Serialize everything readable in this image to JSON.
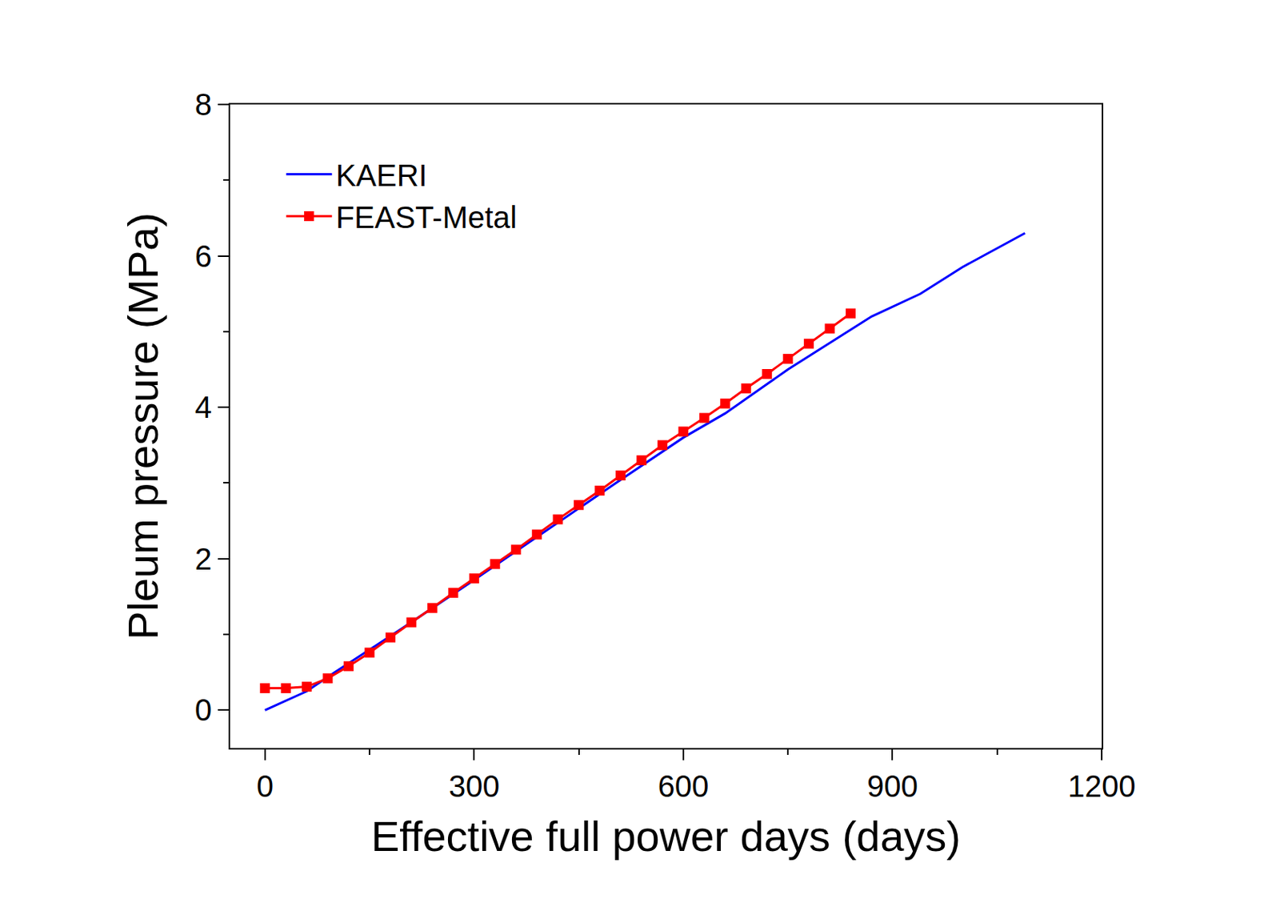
{
  "chart_data": {
    "type": "line",
    "x_label": "Effective full power days (days)",
    "y_label": "Pleum pressure (MPa)",
    "xlim": [
      -50,
      1200
    ],
    "xticks": [
      0,
      300,
      600,
      900,
      1200
    ],
    "ylim": [
      -0.5,
      8
    ],
    "yticks": [
      0,
      2,
      4,
      6,
      8
    ],
    "grid": false,
    "legend": "upper left",
    "series": [
      {
        "name": "KAERI",
        "color": "#0000ff",
        "marker": "none",
        "line_style": "solid",
        "x": [
          0,
          60,
          100,
          200,
          300,
          400,
          500,
          600,
          660,
          750,
          870,
          940,
          1000,
          1090
        ],
        "values": [
          0,
          0.25,
          0.5,
          1.1,
          1.72,
          2.35,
          2.98,
          3.6,
          3.92,
          4.5,
          5.2,
          5.5,
          5.85,
          6.3
        ]
      },
      {
        "name": "FEAST-Metal",
        "color": "#ff0000",
        "marker": "square",
        "line_style": "solid",
        "x": [
          0,
          30,
          60,
          90,
          120,
          150,
          180,
          210,
          240,
          270,
          300,
          330,
          360,
          390,
          420,
          450,
          480,
          510,
          540,
          570,
          600,
          630,
          660,
          690,
          720,
          750,
          780,
          810,
          840
        ],
        "values": [
          0.29,
          0.29,
          0.31,
          0.42,
          0.58,
          0.76,
          0.96,
          1.16,
          1.35,
          1.55,
          1.74,
          1.93,
          2.12,
          2.32,
          2.52,
          2.71,
          2.9,
          3.1,
          3.3,
          3.5,
          3.68,
          3.86,
          4.05,
          4.25,
          4.44,
          4.64,
          4.84,
          5.04,
          5.24
        ]
      }
    ]
  }
}
